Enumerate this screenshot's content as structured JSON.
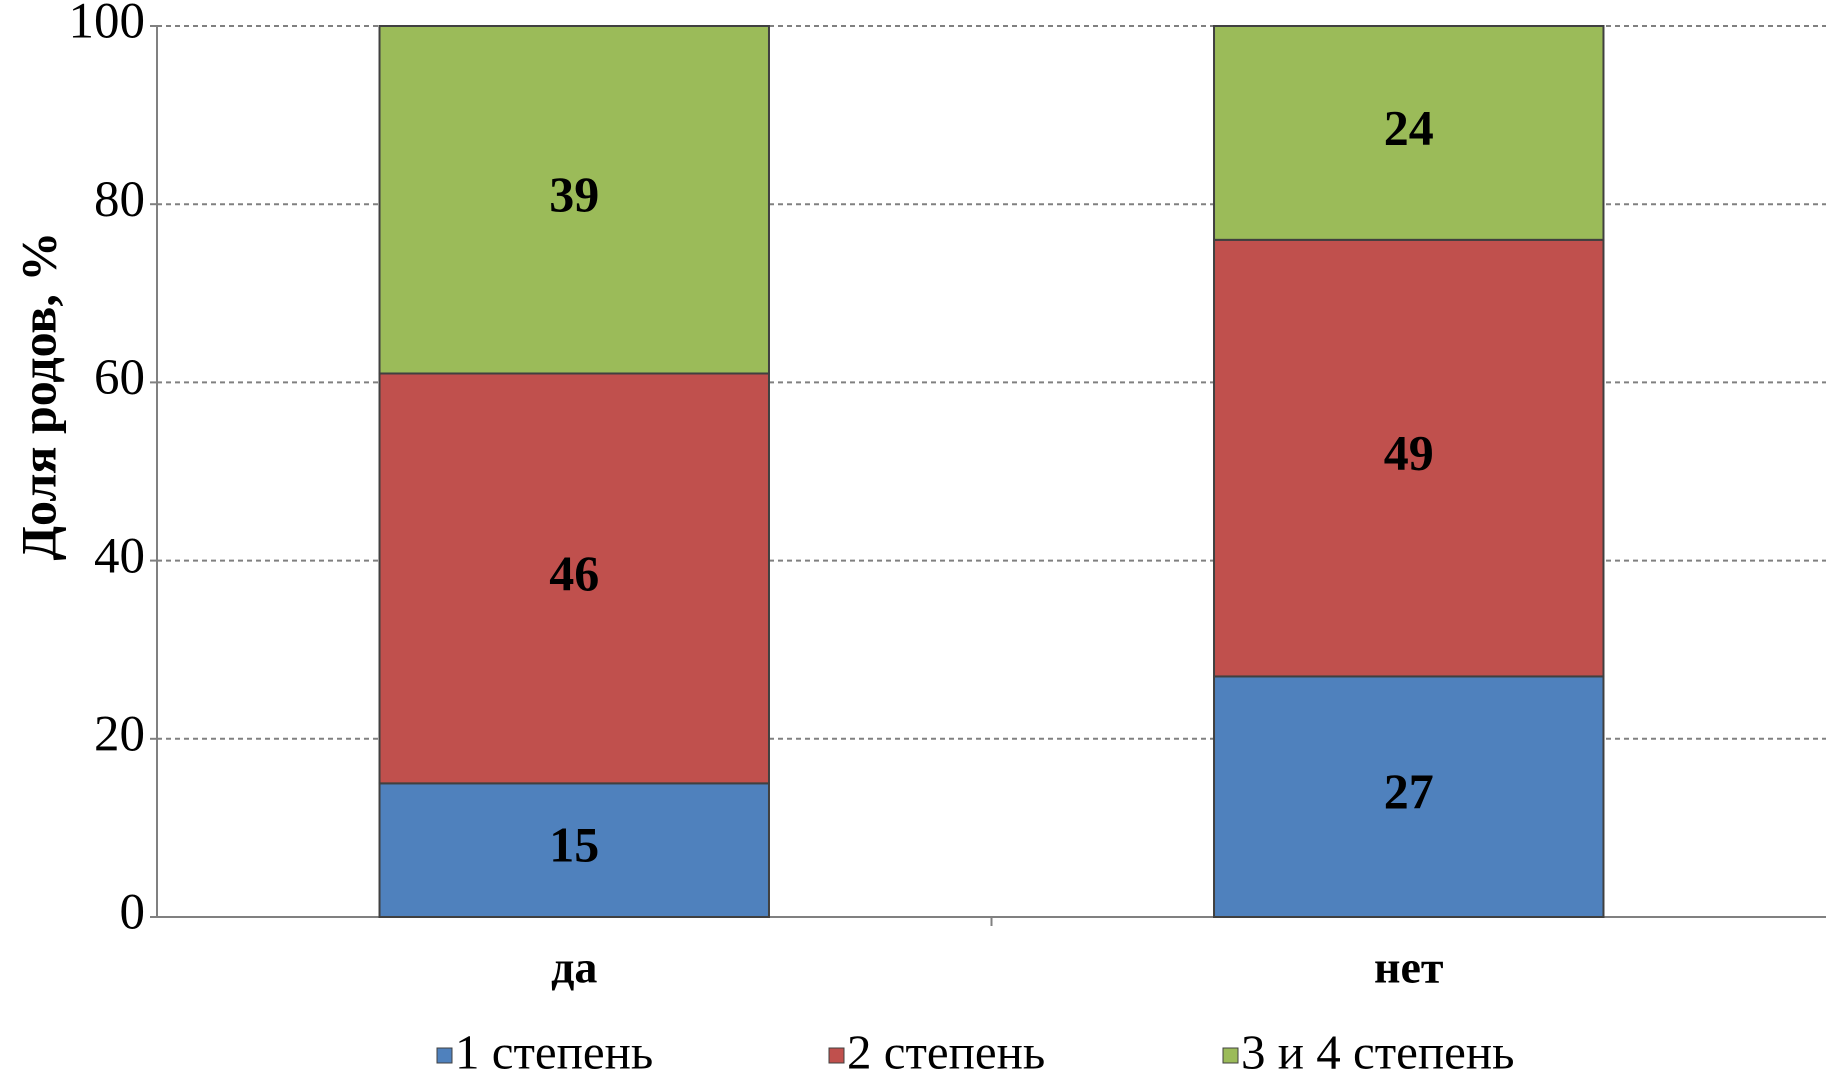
{
  "chart_data": {
    "type": "stacked_bar",
    "y_label": "Доля родов, %",
    "categories": [
      "да",
      "нет"
    ],
    "series": [
      {
        "name": "1 степень",
        "color": "#4f81bd",
        "values": [
          15,
          27
        ]
      },
      {
        "name": "2 степень",
        "color": "#c0504d",
        "values": [
          46,
          49
        ]
      },
      {
        "name": "3 и 4 степень",
        "color": "#9bbb59",
        "values": [
          39,
          24
        ]
      }
    ],
    "ylim": [
      0,
      100
    ],
    "yticks": [
      0,
      20,
      40,
      60,
      80,
      100
    ],
    "grid": true,
    "legend": "bottom"
  }
}
